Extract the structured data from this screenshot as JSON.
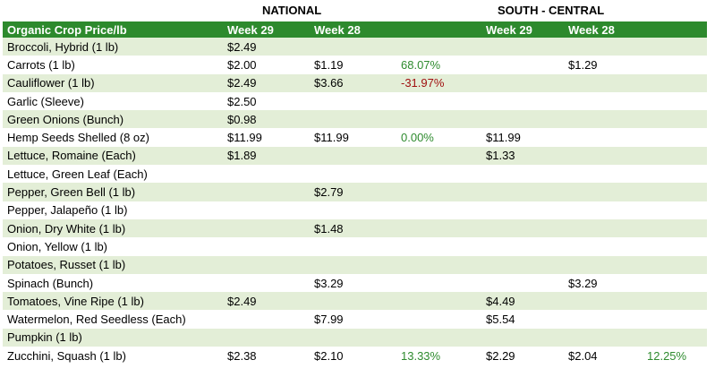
{
  "regions": {
    "national": "NATIONAL",
    "south_central": "SOUTH - CENTRAL"
  },
  "headers": {
    "crop": "Organic Crop Price/lb",
    "nat_w29": "Week 29",
    "nat_w28": "Week 28",
    "nat_chg": "",
    "sc_w29": "Week 29",
    "sc_w28": "Week 28",
    "sc_chg": ""
  },
  "colors": {
    "header_bg": "#2d8a2d",
    "band": "#e3eed7",
    "positive": "#2e8b2e",
    "negative": "#a01010"
  },
  "rows": [
    {
      "crop": "Broccoli, Hybrid (1 lb)",
      "nat_w29": "$2.49",
      "nat_w28": "",
      "nat_chg": "",
      "sc_w29": "",
      "sc_w28": "",
      "sc_chg": ""
    },
    {
      "crop": "Carrots (1 lb)",
      "nat_w29": "$2.00",
      "nat_w28": "$1.19",
      "nat_chg": "68.07%",
      "sc_w29": "",
      "sc_w28": "$1.29",
      "sc_chg": ""
    },
    {
      "crop": "Cauliflower (1 lb)",
      "nat_w29": "$2.49",
      "nat_w28": "$3.66",
      "nat_chg": "-31.97%",
      "sc_w29": "",
      "sc_w28": "",
      "sc_chg": ""
    },
    {
      "crop": "Garlic (Sleeve)",
      "nat_w29": "$2.50",
      "nat_w28": "",
      "nat_chg": "",
      "sc_w29": "",
      "sc_w28": "",
      "sc_chg": ""
    },
    {
      "crop": "Green Onions (Bunch)",
      "nat_w29": "$0.98",
      "nat_w28": "",
      "nat_chg": "",
      "sc_w29": "",
      "sc_w28": "",
      "sc_chg": ""
    },
    {
      "crop": "Hemp Seeds Shelled (8 oz)",
      "nat_w29": "$11.99",
      "nat_w28": "$11.99",
      "nat_chg": "0.00%",
      "sc_w29": "$11.99",
      "sc_w28": "",
      "sc_chg": ""
    },
    {
      "crop": "Lettuce, Romaine (Each)",
      "nat_w29": "$1.89",
      "nat_w28": "",
      "nat_chg": "",
      "sc_w29": "$1.33",
      "sc_w28": "",
      "sc_chg": ""
    },
    {
      "crop": "Lettuce, Green Leaf (Each)",
      "nat_w29": "",
      "nat_w28": "",
      "nat_chg": "",
      "sc_w29": "",
      "sc_w28": "",
      "sc_chg": ""
    },
    {
      "crop": "Pepper, Green Bell (1 lb)",
      "nat_w29": "",
      "nat_w28": "$2.79",
      "nat_chg": "",
      "sc_w29": "",
      "sc_w28": "",
      "sc_chg": ""
    },
    {
      "crop": "Pepper, Jalapeño (1 lb)",
      "nat_w29": "",
      "nat_w28": "",
      "nat_chg": "",
      "sc_w29": "",
      "sc_w28": "",
      "sc_chg": ""
    },
    {
      "crop": "Onion, Dry White (1 lb)",
      "nat_w29": "",
      "nat_w28": "$1.48",
      "nat_chg": "",
      "sc_w29": "",
      "sc_w28": "",
      "sc_chg": ""
    },
    {
      "crop": "Onion, Yellow (1 lb)",
      "nat_w29": "",
      "nat_w28": "",
      "nat_chg": "",
      "sc_w29": "",
      "sc_w28": "",
      "sc_chg": ""
    },
    {
      "crop": "Potatoes, Russet (1 lb)",
      "nat_w29": "",
      "nat_w28": "",
      "nat_chg": "",
      "sc_w29": "",
      "sc_w28": "",
      "sc_chg": ""
    },
    {
      "crop": "Spinach (Bunch)",
      "nat_w29": "",
      "nat_w28": "$3.29",
      "nat_chg": "",
      "sc_w29": "",
      "sc_w28": "$3.29",
      "sc_chg": ""
    },
    {
      "crop": "Tomatoes, Vine Ripe (1 lb)",
      "nat_w29": "$2.49",
      "nat_w28": "",
      "nat_chg": "",
      "sc_w29": "$4.49",
      "sc_w28": "",
      "sc_chg": ""
    },
    {
      "crop": "Watermelon, Red Seedless (Each)",
      "nat_w29": "",
      "nat_w28": "$7.99",
      "nat_chg": "",
      "sc_w29": "$5.54",
      "sc_w28": "",
      "sc_chg": ""
    },
    {
      "crop": "Pumpkin (1 lb)",
      "nat_w29": "",
      "nat_w28": "",
      "nat_chg": "",
      "sc_w29": "",
      "sc_w28": "",
      "sc_chg": ""
    },
    {
      "crop": "Zucchini, Squash (1 lb)",
      "nat_w29": "$2.38",
      "nat_w28": "$2.10",
      "nat_chg": "13.33%",
      "sc_w29": "$2.29",
      "sc_w28": "$2.04",
      "sc_chg": "12.25%"
    }
  ]
}
